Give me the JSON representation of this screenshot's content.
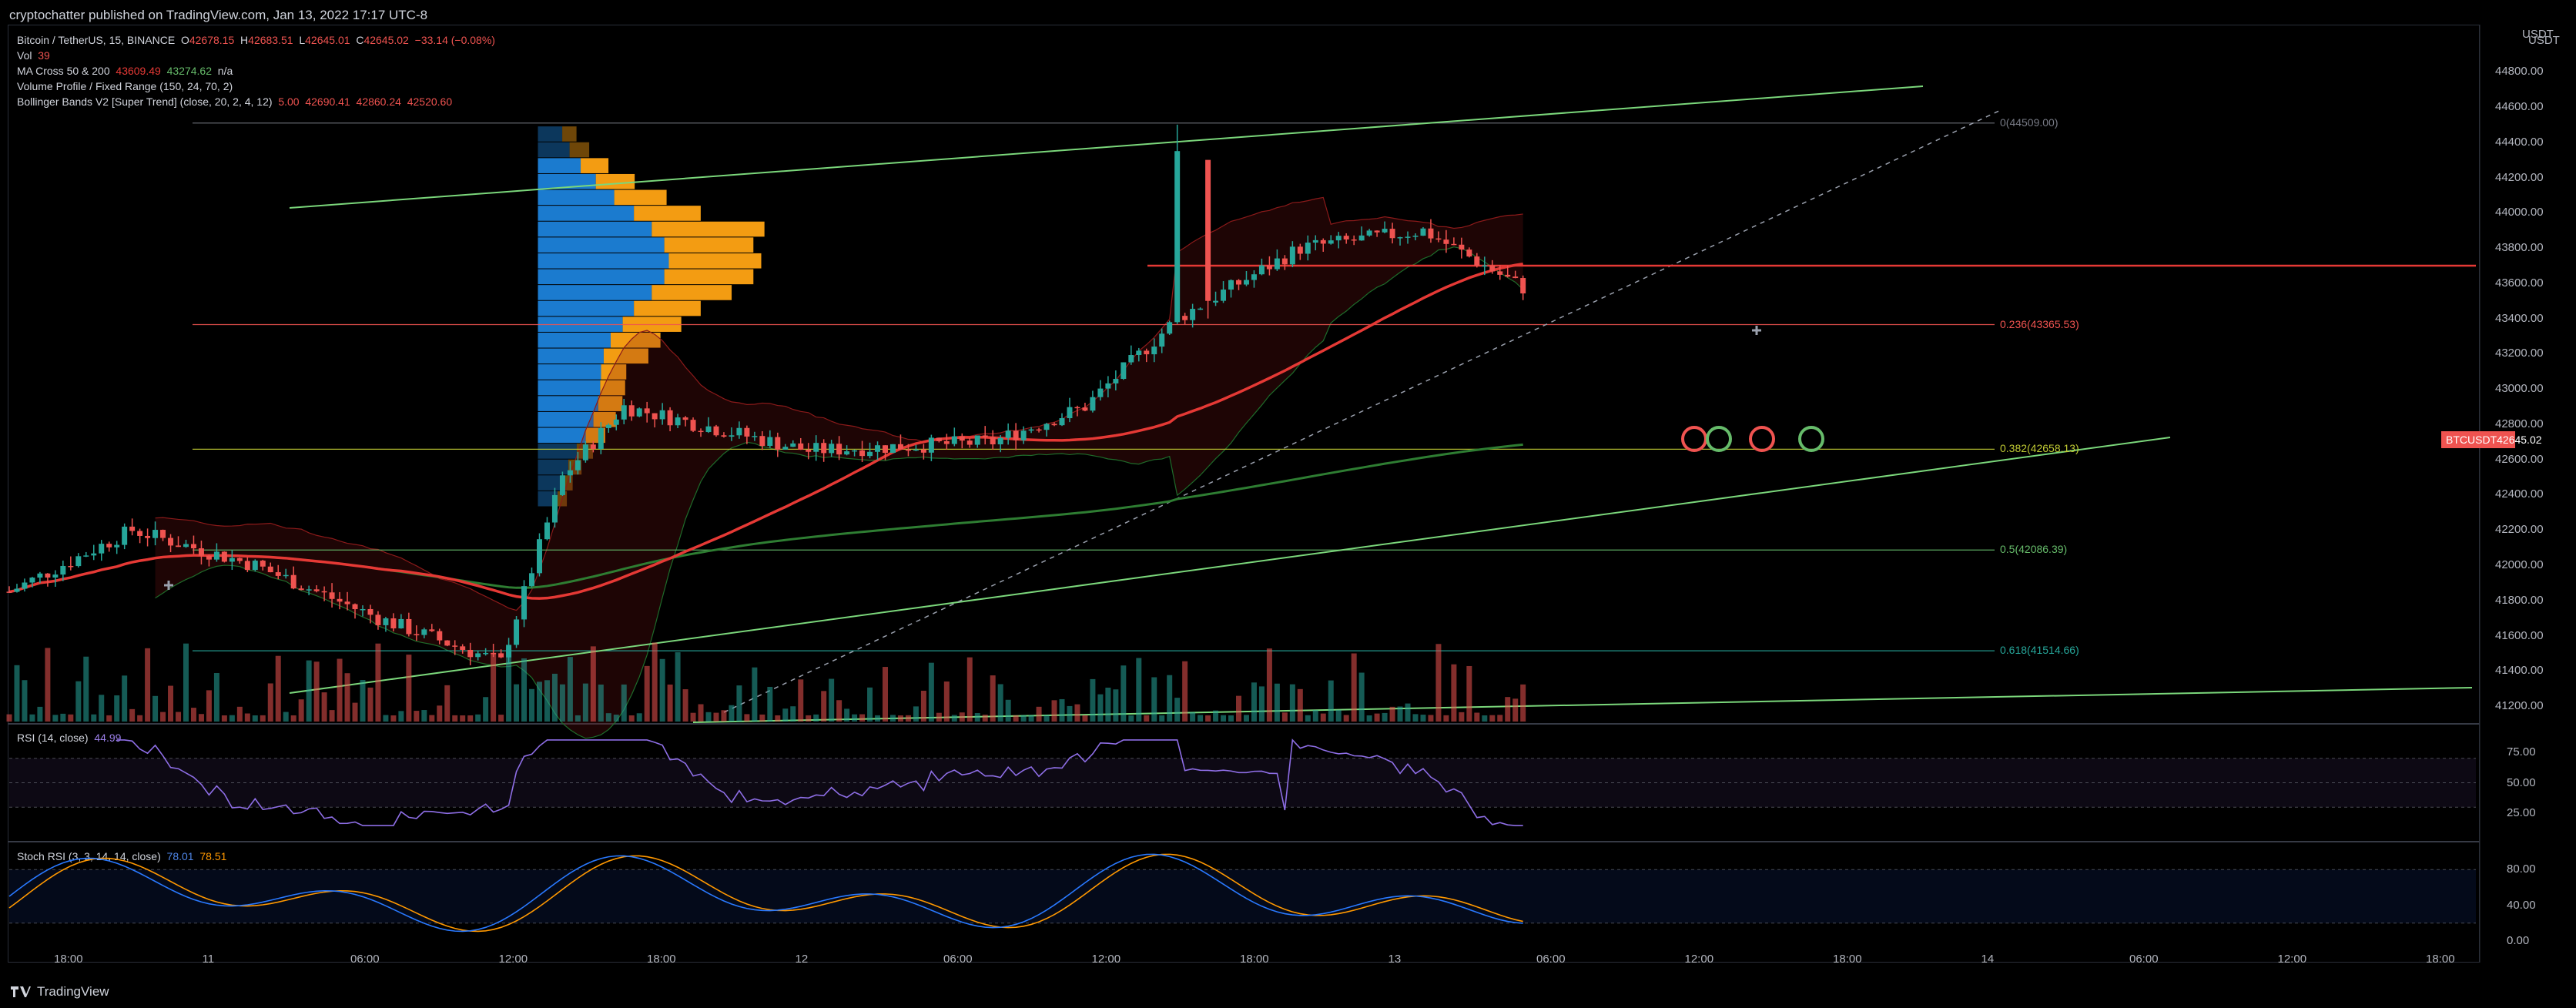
{
  "header": {
    "published": "cryptochatter published on TradingView.com, Jan 13, 2022 17:17 UTC-8"
  },
  "legend": {
    "symbol": "Bitcoin / TetherUS, 15, BINANCE",
    "ohlc": {
      "o_label": "O",
      "o": "42678.15",
      "h_label": "H",
      "h": "42683.51",
      "l_label": "L",
      "l": "42645.01",
      "c_label": "C",
      "c": "42645.02",
      "chg": "−33.14 (−0.08%)"
    },
    "vol_label": "Vol",
    "vol": "39",
    "ma_label": "MA Cross 50 & 200",
    "ma_50": "43609.49",
    "ma_200": "43274.62",
    "ma_na": "n/a",
    "vp_label": "Volume Profile / Fixed Range (150, 24, 70, 2)",
    "bb_label": "Bollinger Bands V2 [Super Trend] (close, 20, 2, 4, 12)",
    "bb_vals": [
      "5.00",
      "42690.41",
      "42860.24",
      "42520.60"
    ],
    "rsi_label": "RSI (14, close)",
    "rsi_val": "44.99",
    "stoch_label": "Stoch RSI (3, 3, 14, 14, close)",
    "stoch_k": "78.01",
    "stoch_d": "78.51"
  },
  "price_axis": {
    "currency": "USDT",
    "currency_top": "USDT",
    "ticks": [
      "44800.00",
      "44600.00",
      "44400.00",
      "44200.00",
      "44000.00",
      "43800.00",
      "43600.00",
      "43400.00",
      "43200.00",
      "43000.00",
      "42800.00",
      "42600.00",
      "42400.00",
      "42200.00",
      "42000.00",
      "41800.00",
      "41600.00",
      "41400.00",
      "41200.00"
    ],
    "current_tag_symbol": "BTCUSDT",
    "current_tag_price": "42645.02"
  },
  "rsi_axis": [
    "75.00",
    "50.00",
    "25.00"
  ],
  "stoch_axis": [
    "80.00",
    "40.00",
    "0.00"
  ],
  "time_axis": [
    "18:00",
    "11",
    "06:00",
    "12:00",
    "18:00",
    "12",
    "06:00",
    "12:00",
    "18:00",
    "13",
    "06:00",
    "12:00",
    "18:00",
    "14",
    "06:00",
    "12:00",
    "18:00"
  ],
  "fib_levels": [
    {
      "label": "0(44509.00)",
      "price": 44509.0,
      "color": "#787b86"
    },
    {
      "label": "0.236(43365.53)",
      "price": 43365.53,
      "color": "#ef5350"
    },
    {
      "label": "0.382(42658.13)",
      "price": 42658.13,
      "color": "#c0ca33"
    },
    {
      "label": "0.5(42086.39)",
      "price": 42086.39,
      "color": "#66bb6a"
    },
    {
      "label": "0.618(41514.66)",
      "price": 41514.66,
      "color": "#26a69a"
    }
  ],
  "colors": {
    "up": "#26a69a",
    "down": "#ef5350",
    "ma50": "#e53935",
    "ma200": "#2e7d32",
    "trend": "#7bd77b",
    "vp_blue": "#1e88e5",
    "vp_orange": "#f39c12",
    "rsi": "#8e6ee6",
    "stoch_k": "#2979ff",
    "stoch_d": "#ff9800"
  },
  "chart_data": {
    "type": "candlestick",
    "symbol": "BTCUSDT",
    "timeframe": "15",
    "ylim": [
      41100,
      45050
    ],
    "price_key_points": [
      {
        "t": "Jan 10 16:00",
        "price": 41850
      },
      {
        "t": "Jan 10 20:00",
        "price": 42200
      },
      {
        "t": "Jan 11 00:00",
        "price": 42000
      },
      {
        "t": "Jan 11 04:00",
        "price": 41700
      },
      {
        "t": "Jan 11 08:00",
        "price": 41450
      },
      {
        "t": "Jan 11 10:00",
        "price": 42500
      },
      {
        "t": "Jan 11 12:00",
        "price": 42900
      },
      {
        "t": "Jan 11 18:00",
        "price": 42650
      },
      {
        "t": "Jan 12 00:00",
        "price": 42700
      },
      {
        "t": "Jan 12 03:00",
        "price": 42900
      },
      {
        "t": "Jan 12 06:00",
        "price": 43400
      },
      {
        "t": "Jan 12 10:00",
        "price": 43800
      },
      {
        "t": "Jan 12 14:00",
        "price": 43900
      },
      {
        "t": "Jan 12 18:00",
        "price": 43500
      },
      {
        "t": "Jan 13 00:00",
        "price": 43700
      },
      {
        "t": "Jan 13 05:00",
        "price": 43800
      },
      {
        "t": "Jan 13 06:00",
        "price": 44300
      },
      {
        "t": "Jan 13 07:00",
        "price": 43200
      },
      {
        "t": "Jan 13 10:00",
        "price": 42700
      },
      {
        "t": "Jan 13 12:00",
        "price": 42550
      },
      {
        "t": "Jan 13 15:00",
        "price": 42700
      },
      {
        "t": "Jan 13 17:00",
        "price": 42645
      }
    ],
    "series": [
      {
        "name": "MA 50",
        "last": 43609.49
      },
      {
        "name": "MA 200",
        "last": 43274.62
      }
    ],
    "rsi_last": 44.99,
    "stoch_rsi": {
      "k": 78.01,
      "d": 78.51
    }
  }
}
